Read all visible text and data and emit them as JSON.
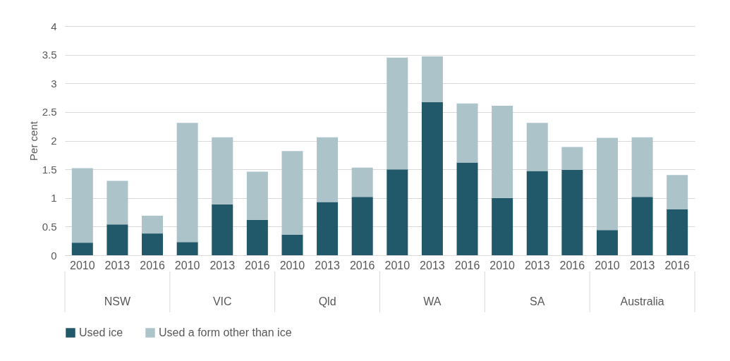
{
  "chart_data": {
    "type": "bar",
    "stacked": true,
    "ylabel": "Per cent",
    "ylim": [
      0,
      4
    ],
    "yticks": [
      0,
      0.5,
      1,
      1.5,
      2,
      2.5,
      3,
      3.5,
      4
    ],
    "grid": "y",
    "legend": "bottom",
    "categories": [
      "2010",
      "2013",
      "2016",
      "2010",
      "2013",
      "2016",
      "2010",
      "2013",
      "2016",
      "2010",
      "2013",
      "2016",
      "2010",
      "2013",
      "2016",
      "2010",
      "2013",
      "2016"
    ],
    "annotations": [
      "NSW",
      "VIC",
      "Qld",
      "WA",
      "SA",
      "Australia"
    ],
    "series": [
      {
        "name": "Used ice",
        "color": "#22596a",
        "values": [
          0.22,
          0.54,
          0.38,
          0.23,
          0.89,
          0.62,
          0.36,
          0.93,
          1.02,
          1.5,
          2.67,
          1.62,
          1.0,
          1.47,
          1.49,
          0.44,
          1.02,
          0.8
        ]
      },
      {
        "name": "Used a form other than ice",
        "color": "#acc3ca",
        "values": [
          1.3,
          0.76,
          0.31,
          2.08,
          1.17,
          0.84,
          1.46,
          1.13,
          0.51,
          1.95,
          0.8,
          1.03,
          1.61,
          0.84,
          0.4,
          1.61,
          1.04,
          0.6
        ]
      }
    ]
  }
}
